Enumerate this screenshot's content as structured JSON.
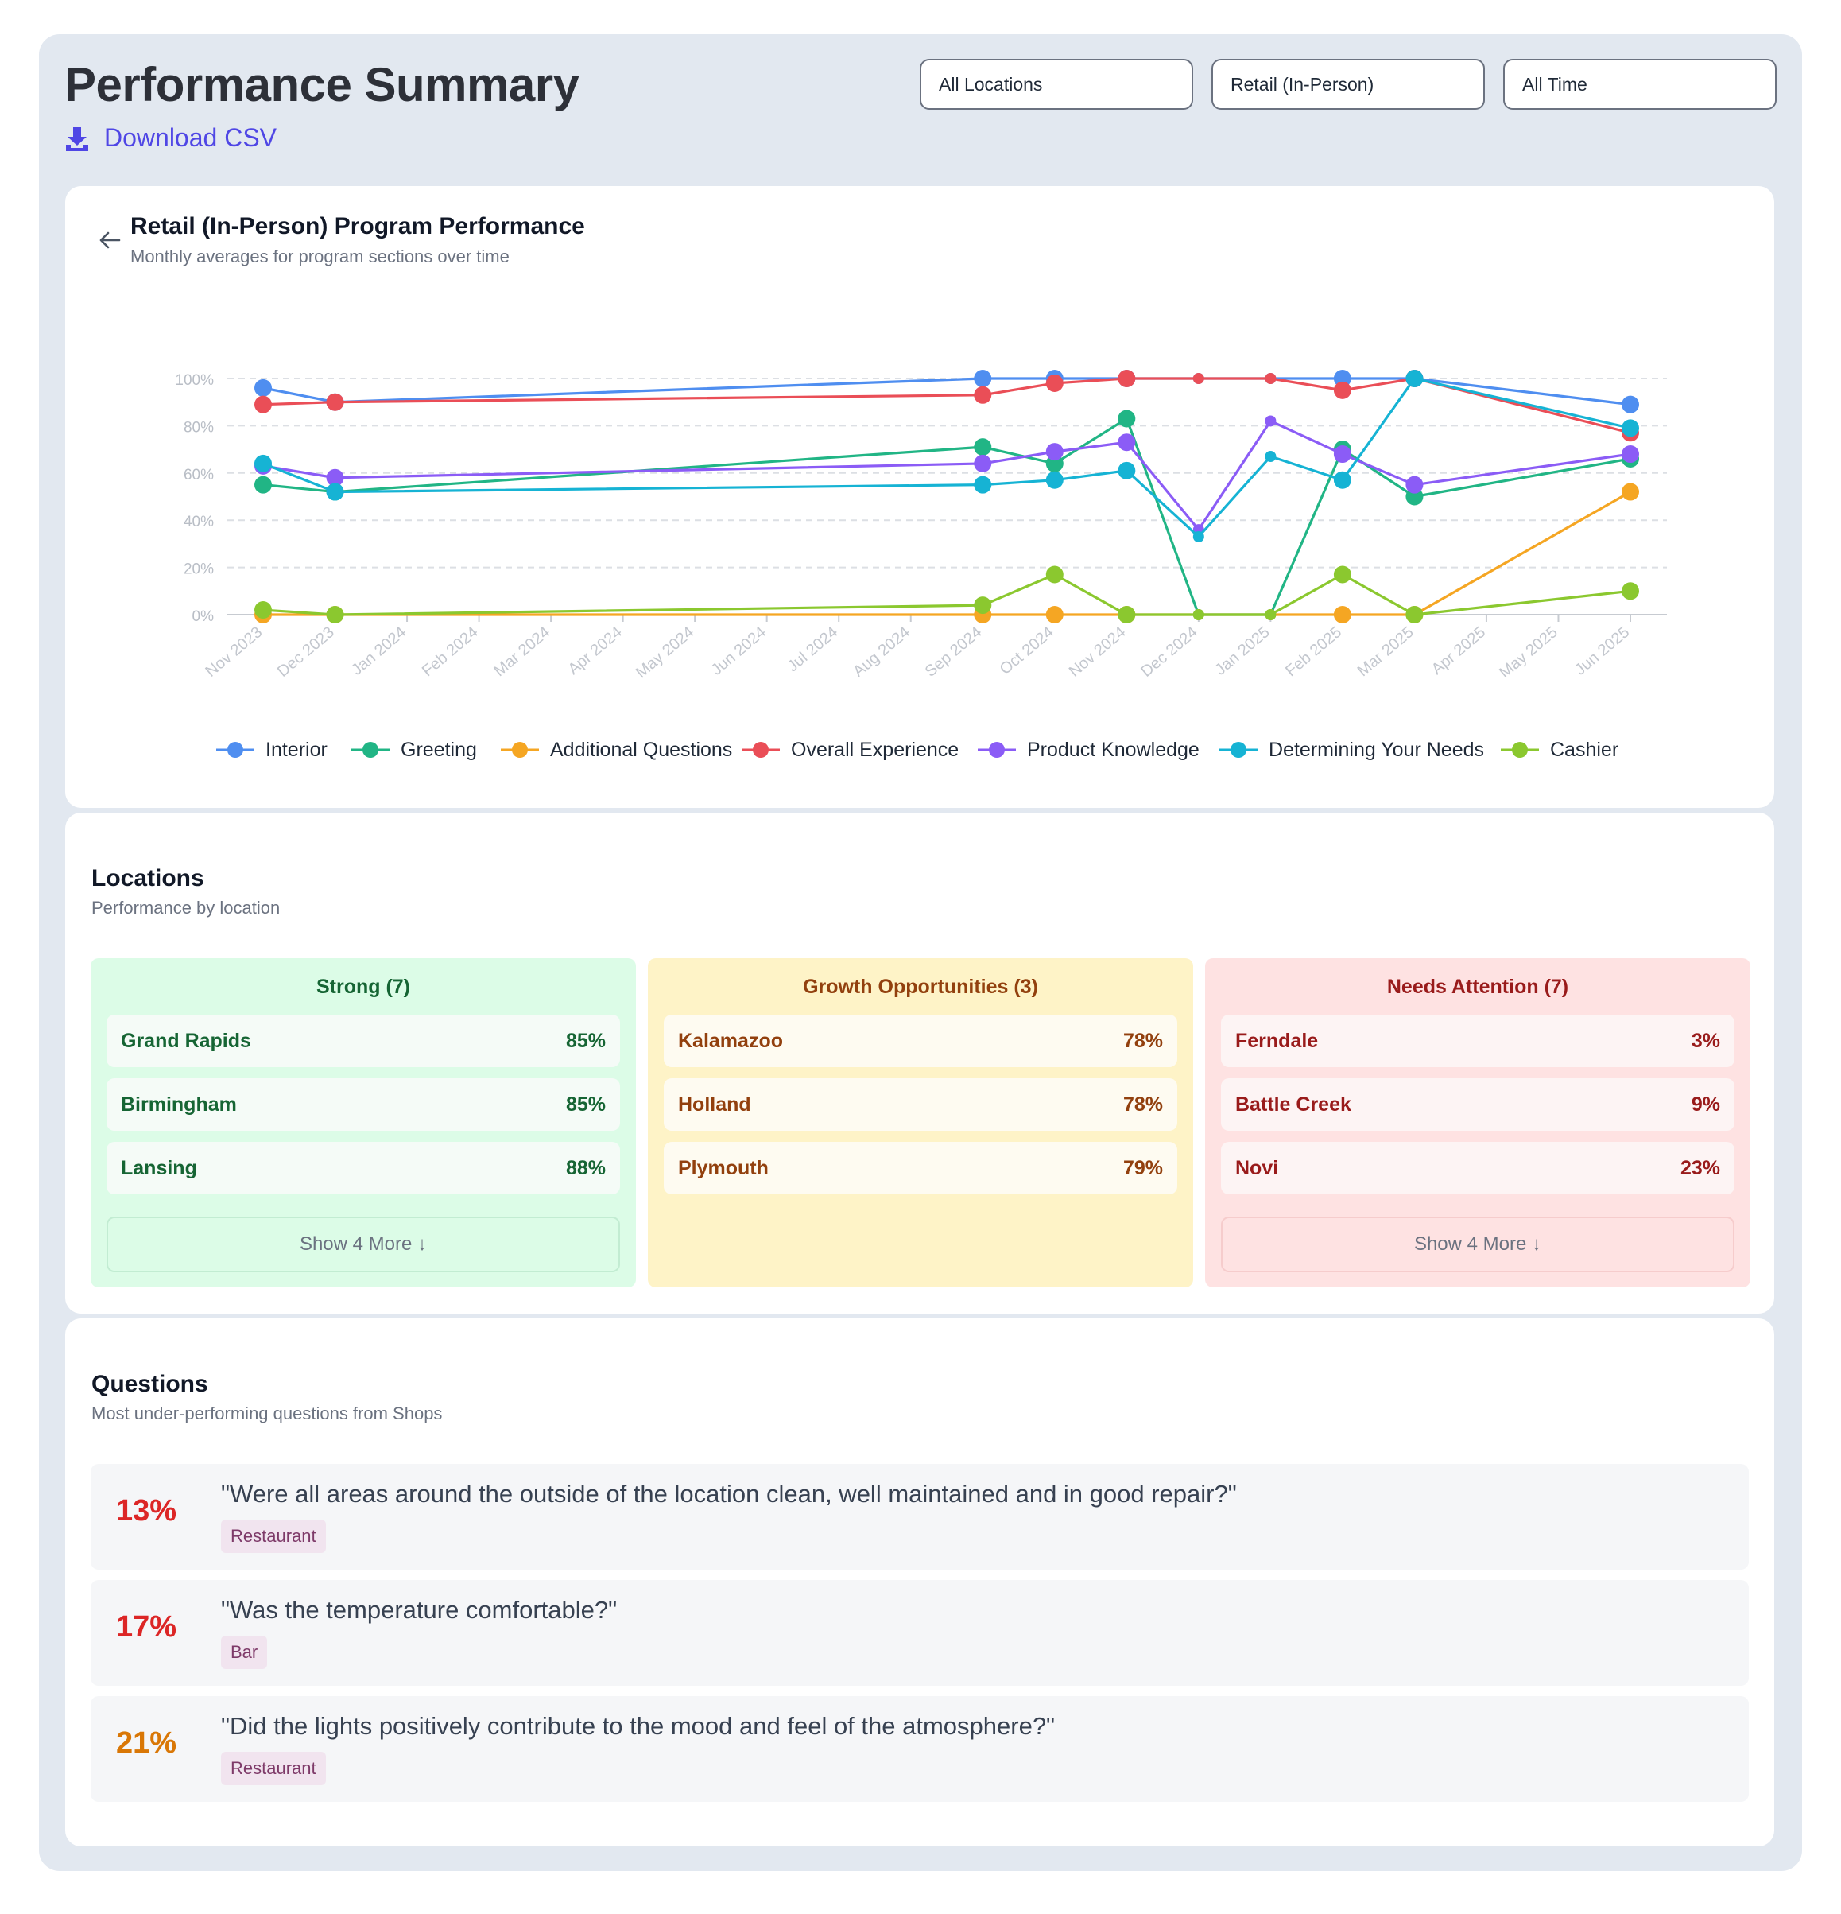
{
  "header": {
    "title": "Performance Summary",
    "download_label": "Download CSV"
  },
  "filters": {
    "location": "All Locations",
    "program": "Retail (In-Person)",
    "period": "All Time"
  },
  "chart_card": {
    "title": "Retail (In-Person) Program Performance",
    "subtitle": "Monthly averages for program sections over time"
  },
  "chart_data": {
    "type": "line",
    "x": [
      "Nov 2023",
      "Dec 2023",
      "Jan 2024",
      "Feb 2024",
      "Mar 2024",
      "Apr 2024",
      "May 2024",
      "Jun 2024",
      "Jul 2024",
      "Aug 2024",
      "Sep 2024",
      "Oct 2024",
      "Nov 2024",
      "Dec 2024",
      "Jan 2025",
      "Feb 2025",
      "Mar 2025",
      "Apr 2025",
      "May 2025",
      "Jun 2025"
    ],
    "y_ticks": [
      "0%",
      "20%",
      "40%",
      "60%",
      "80%",
      "100%"
    ],
    "ylim": [
      0,
      100
    ],
    "grid": true,
    "legend_position": "bottom",
    "series": [
      {
        "name": "Interior",
        "color": "#4f8ef0",
        "values": [
          96,
          90,
          null,
          null,
          null,
          null,
          null,
          null,
          null,
          null,
          100,
          100,
          100,
          100,
          100,
          100,
          100,
          null,
          null,
          89
        ]
      },
      {
        "name": "Greeting",
        "color": "#21b585",
        "values": [
          55,
          52,
          null,
          null,
          null,
          null,
          null,
          null,
          null,
          null,
          71,
          64,
          83,
          0,
          0,
          70,
          50,
          null,
          null,
          66
        ]
      },
      {
        "name": "Additional Questions",
        "color": "#f5a623",
        "values": [
          0,
          0,
          null,
          null,
          null,
          null,
          null,
          null,
          null,
          null,
          0,
          0,
          0,
          0,
          0,
          0,
          0,
          null,
          null,
          52
        ]
      },
      {
        "name": "Overall Experience",
        "color": "#ea4e57",
        "values": [
          89,
          90,
          null,
          null,
          null,
          null,
          null,
          null,
          null,
          null,
          93,
          98,
          100,
          100,
          100,
          95,
          100,
          null,
          null,
          77
        ]
      },
      {
        "name": "Product Knowledge",
        "color": "#8b5cf6",
        "values": [
          63,
          58,
          null,
          null,
          null,
          null,
          null,
          null,
          null,
          null,
          64,
          69,
          73,
          36,
          82,
          68,
          55,
          null,
          null,
          68
        ]
      },
      {
        "name": "Determining Your Needs",
        "color": "#16b3d4",
        "values": [
          64,
          52,
          null,
          null,
          null,
          null,
          null,
          null,
          null,
          null,
          55,
          57,
          61,
          33,
          67,
          57,
          100,
          null,
          null,
          79
        ]
      },
      {
        "name": "Cashier",
        "color": "#8bc82f",
        "values": [
          2,
          0,
          null,
          null,
          null,
          null,
          null,
          null,
          null,
          null,
          4,
          17,
          0,
          0,
          0,
          17,
          0,
          null,
          null,
          10
        ]
      }
    ]
  },
  "locations": {
    "title": "Locations",
    "subtitle": "Performance by location",
    "groups": [
      {
        "heading": "Strong (7)",
        "items": [
          {
            "name": "Grand Rapids",
            "score": "85%"
          },
          {
            "name": "Birmingham",
            "score": "85%"
          },
          {
            "name": "Lansing",
            "score": "88%"
          }
        ],
        "more_label": "Show 4 More ↓"
      },
      {
        "heading": "Growth Opportunities (3)",
        "items": [
          {
            "name": "Kalamazoo",
            "score": "78%"
          },
          {
            "name": "Holland",
            "score": "78%"
          },
          {
            "name": "Plymouth",
            "score": "79%"
          }
        ]
      },
      {
        "heading": "Needs Attention (7)",
        "items": [
          {
            "name": "Ferndale",
            "score": "3%"
          },
          {
            "name": "Battle Creek",
            "score": "9%"
          },
          {
            "name": "Novi",
            "score": "23%"
          }
        ],
        "more_label": "Show 4 More ↓"
      }
    ]
  },
  "questions": {
    "title": "Questions",
    "subtitle": "Most under-performing questions from Shops",
    "items": [
      {
        "score": "13%",
        "text": "\"Were all areas around the outside of the location clean, well maintained and in good repair?\"",
        "tag": "Restaurant"
      },
      {
        "score": "17%",
        "text": "\"Was the temperature comfortable?\"",
        "tag": "Bar"
      },
      {
        "score": "21%",
        "text": "\"Did the lights positively contribute to the mood and feel of the atmosphere?\"",
        "tag": "Restaurant"
      }
    ]
  },
  "colors": {
    "strong_bg": "#dcfce7",
    "strong_text": "#166534",
    "growth_bg": "#fef3c7",
    "growth_text": "#92400e",
    "attention_bg": "#fee2e2",
    "attention_text": "#991b1b",
    "accent": "#4f46e5"
  },
  "icons": {
    "download": "download-icon",
    "back": "arrow-left-icon"
  }
}
